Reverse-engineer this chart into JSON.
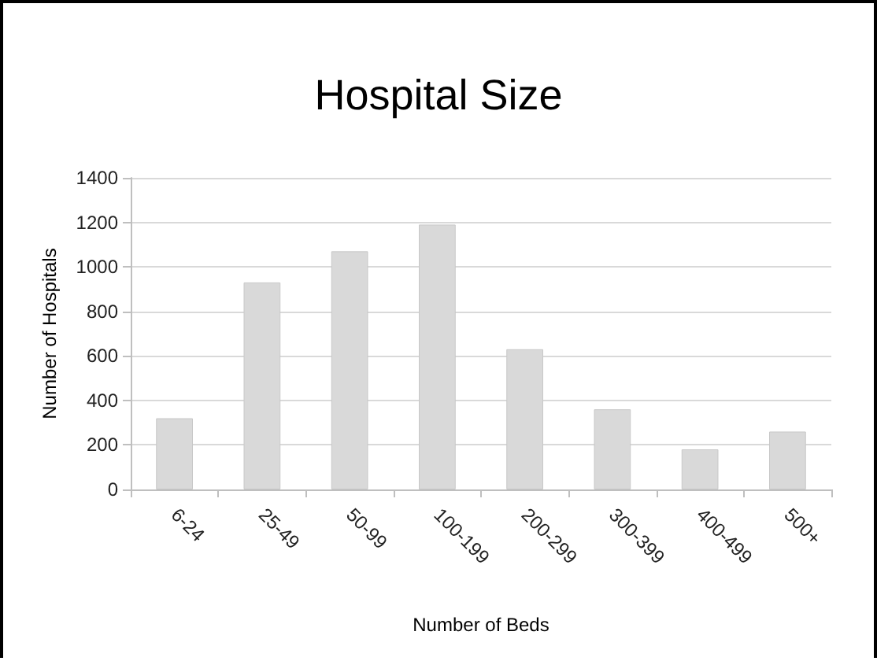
{
  "chart_data": {
    "type": "bar",
    "title": "Hospital Size",
    "xlabel": "Number of Beds",
    "ylabel": "Number of Hospitals",
    "categories": [
      "6-24",
      "25-49",
      "50-99",
      "100-199",
      "200-299",
      "300-399",
      "400-499",
      "500+"
    ],
    "values": [
      320,
      930,
      1070,
      1190,
      630,
      360,
      180,
      260
    ],
    "color": "#d9d9d9",
    "ylim": [
      0,
      1400
    ],
    "yticks": [
      0,
      200,
      400,
      600,
      800,
      1000,
      1200,
      1400
    ],
    "grid": "y"
  }
}
